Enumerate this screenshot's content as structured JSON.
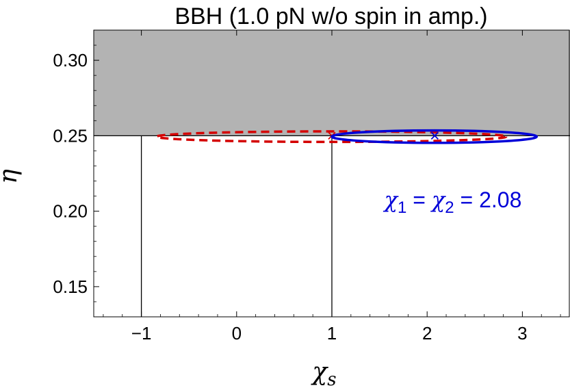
{
  "chart_data": {
    "type": "scatter",
    "title": "BBH (1.0 pN w/o spin in amp.)",
    "xlabel": "χ",
    "xlabel_subscript": "s",
    "ylabel": "η",
    "xlim": [
      -1.5,
      3.5
    ],
    "ylim": [
      0.13,
      0.32
    ],
    "x_ticks": [
      -1,
      0,
      1,
      2,
      3
    ],
    "x_tick_labels": [
      "−1",
      "0",
      "1",
      "2",
      "3"
    ],
    "y_ticks": [
      0.15,
      0.2,
      0.25,
      0.3
    ],
    "y_tick_labels": [
      "0.15",
      "0.20",
      "0.25",
      "0.30"
    ],
    "excluded_region": {
      "y_from": 0.25,
      "y_to": 0.32,
      "color": "#b3b3b3"
    },
    "reference_lines": {
      "horizontal": [
        0.25
      ],
      "vertical": [
        {
          "x": -1,
          "y_from": 0.13,
          "y_to": 0.25
        },
        {
          "x": 1,
          "y_from": 0.13,
          "y_to": 0.25
        }
      ]
    },
    "series": [
      {
        "style": "dashed-ellipse",
        "color": "#d40000",
        "center": {
          "x": 1.0,
          "y": 0.25
        },
        "ellipse": {
          "x_range": [
            -0.84,
            2.83
          ],
          "y_range": [
            0.2459,
            0.2529
          ]
        },
        "marker": "x"
      },
      {
        "style": "solid-ellipse",
        "color": "#0000d8",
        "center": {
          "x": 2.08,
          "y": 0.25
        },
        "ellipse": {
          "x_range": [
            1.0,
            3.15
          ],
          "y_range": [
            0.2453,
            0.2535
          ]
        },
        "marker": "x"
      }
    ],
    "annotation": {
      "symbol": "χ",
      "sub1": "1",
      "eq1": " = ",
      "sub2": "2",
      "eq2": " = ",
      "value": "2.08",
      "color": "#0000d8",
      "x": 2.08,
      "y": 0.207
    },
    "grid": false,
    "legend": "none"
  }
}
